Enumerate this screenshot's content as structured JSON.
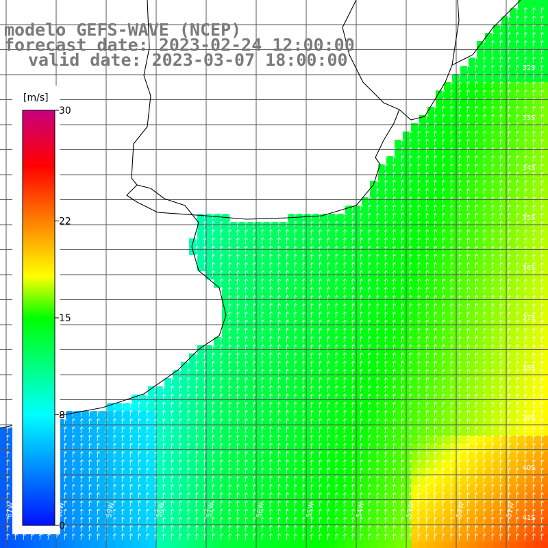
{
  "titles": {
    "line1": "modelo GEFS-WAVE (NCEP)",
    "line2": "forecast date: 2023-02-24 12:00:00",
    "line3": "valid date: 2023-03-07 18:00:00"
  },
  "colorbar": {
    "unit": "[m/s]",
    "labels": [
      {
        "text": "30",
        "value": 30
      },
      {
        "text": "22",
        "value": 22
      },
      {
        "text": "15",
        "value": 15
      },
      {
        "text": "8",
        "value": 8
      },
      {
        "text": "0",
        "value": 0
      }
    ],
    "stops": [
      {
        "v": 0,
        "color": "#0010ff"
      },
      {
        "v": 8,
        "color": "#00ffff"
      },
      {
        "v": 15,
        "color": "#00ff00"
      },
      {
        "v": 18,
        "color": "#ffff00"
      },
      {
        "v": 22,
        "color": "#ff8000"
      },
      {
        "v": 26,
        "color": "#ff0000"
      },
      {
        "v": 30,
        "color": "#c80080"
      }
    ]
  },
  "lat_labels": [
    "32S",
    "33S",
    "34S",
    "35S",
    "36S",
    "37S",
    "38S",
    "39S",
    "40S",
    "41S"
  ],
  "lon_labels": [
    "61W",
    "60W",
    "59W",
    "58W",
    "57W",
    "56W",
    "55W",
    "54W",
    "53W",
    "52W",
    "51W"
  ],
  "colors": {
    "land": "#ffffff",
    "coast": "#000000",
    "grid": "#555555",
    "title": "#7a7a7a"
  }
}
